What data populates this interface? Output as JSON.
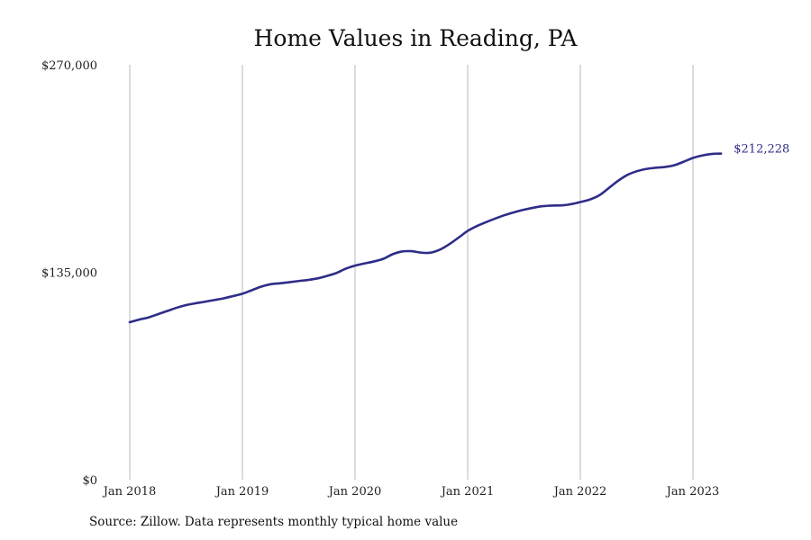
{
  "chart_data": {
    "type": "line",
    "title": "Home Values in Reading, PA",
    "xlabel": "",
    "ylabel": "",
    "ylim": [
      0,
      270000
    ],
    "yticks": [
      0,
      135000,
      270000
    ],
    "ytick_labels": [
      "$0",
      "$135,000",
      "$270,000"
    ],
    "xticks": [
      "2018-01",
      "2019-01",
      "2020-01",
      "2021-01",
      "2022-01",
      "2023-01"
    ],
    "xtick_labels": [
      "Jan 2018",
      "Jan 2019",
      "Jan 2020",
      "Jan 2021",
      "Jan 2022",
      "Jan 2023"
    ],
    "grid": "vertical at x ticks",
    "legend": "none",
    "end_label": "$212,228",
    "series": [
      {
        "color": "#2e2d88",
        "points": [
          [
            "2018-01",
            102500
          ],
          [
            "2018-02",
            104200
          ],
          [
            "2018-03",
            105600
          ],
          [
            "2018-04",
            107700
          ],
          [
            "2018-05",
            109800
          ],
          [
            "2018-06",
            111900
          ],
          [
            "2018-07",
            113600
          ],
          [
            "2018-08",
            114800
          ],
          [
            "2018-09",
            115800
          ],
          [
            "2018-10",
            116900
          ],
          [
            "2018-11",
            118000
          ],
          [
            "2018-12",
            119500
          ],
          [
            "2019-01",
            121000
          ],
          [
            "2019-02",
            123300
          ],
          [
            "2019-03",
            125600
          ],
          [
            "2019-04",
            127200
          ],
          [
            "2019-05",
            127800
          ],
          [
            "2019-06",
            128500
          ],
          [
            "2019-07",
            129300
          ],
          [
            "2019-08",
            130000
          ],
          [
            "2019-09",
            131000
          ],
          [
            "2019-10",
            132600
          ],
          [
            "2019-11",
            134500
          ],
          [
            "2019-12",
            137300
          ],
          [
            "2020-01",
            139300
          ],
          [
            "2020-02",
            140700
          ],
          [
            "2020-03",
            142000
          ],
          [
            "2020-04",
            143700
          ],
          [
            "2020-05",
            146700
          ],
          [
            "2020-06",
            148500
          ],
          [
            "2020-07",
            148700
          ],
          [
            "2020-08",
            147800
          ],
          [
            "2020-09",
            147700
          ],
          [
            "2020-10",
            149600
          ],
          [
            "2020-11",
            153100
          ],
          [
            "2020-12",
            157400
          ],
          [
            "2021-01",
            161900
          ],
          [
            "2021-02",
            165100
          ],
          [
            "2021-03",
            167700
          ],
          [
            "2021-04",
            170100
          ],
          [
            "2021-05",
            172300
          ],
          [
            "2021-06",
            174100
          ],
          [
            "2021-07",
            175700
          ],
          [
            "2021-08",
            177000
          ],
          [
            "2021-09",
            178000
          ],
          [
            "2021-10",
            178400
          ],
          [
            "2021-11",
            178500
          ],
          [
            "2021-12",
            179300
          ],
          [
            "2022-01",
            180700
          ],
          [
            "2022-02",
            182300
          ],
          [
            "2022-03",
            185000
          ],
          [
            "2022-04",
            189600
          ],
          [
            "2022-05",
            194400
          ],
          [
            "2022-06",
            198300
          ],
          [
            "2022-07",
            200700
          ],
          [
            "2022-08",
            202200
          ],
          [
            "2022-09",
            203000
          ],
          [
            "2022-10",
            203500
          ],
          [
            "2022-11",
            204600
          ],
          [
            "2022-12",
            206900
          ],
          [
            "2023-01",
            209400
          ],
          [
            "2023-02",
            211000
          ],
          [
            "2023-03",
            212000
          ],
          [
            "2023-04",
            212228
          ]
        ]
      }
    ]
  },
  "source_note": "Source: Zillow. Data represents monthly typical home value"
}
